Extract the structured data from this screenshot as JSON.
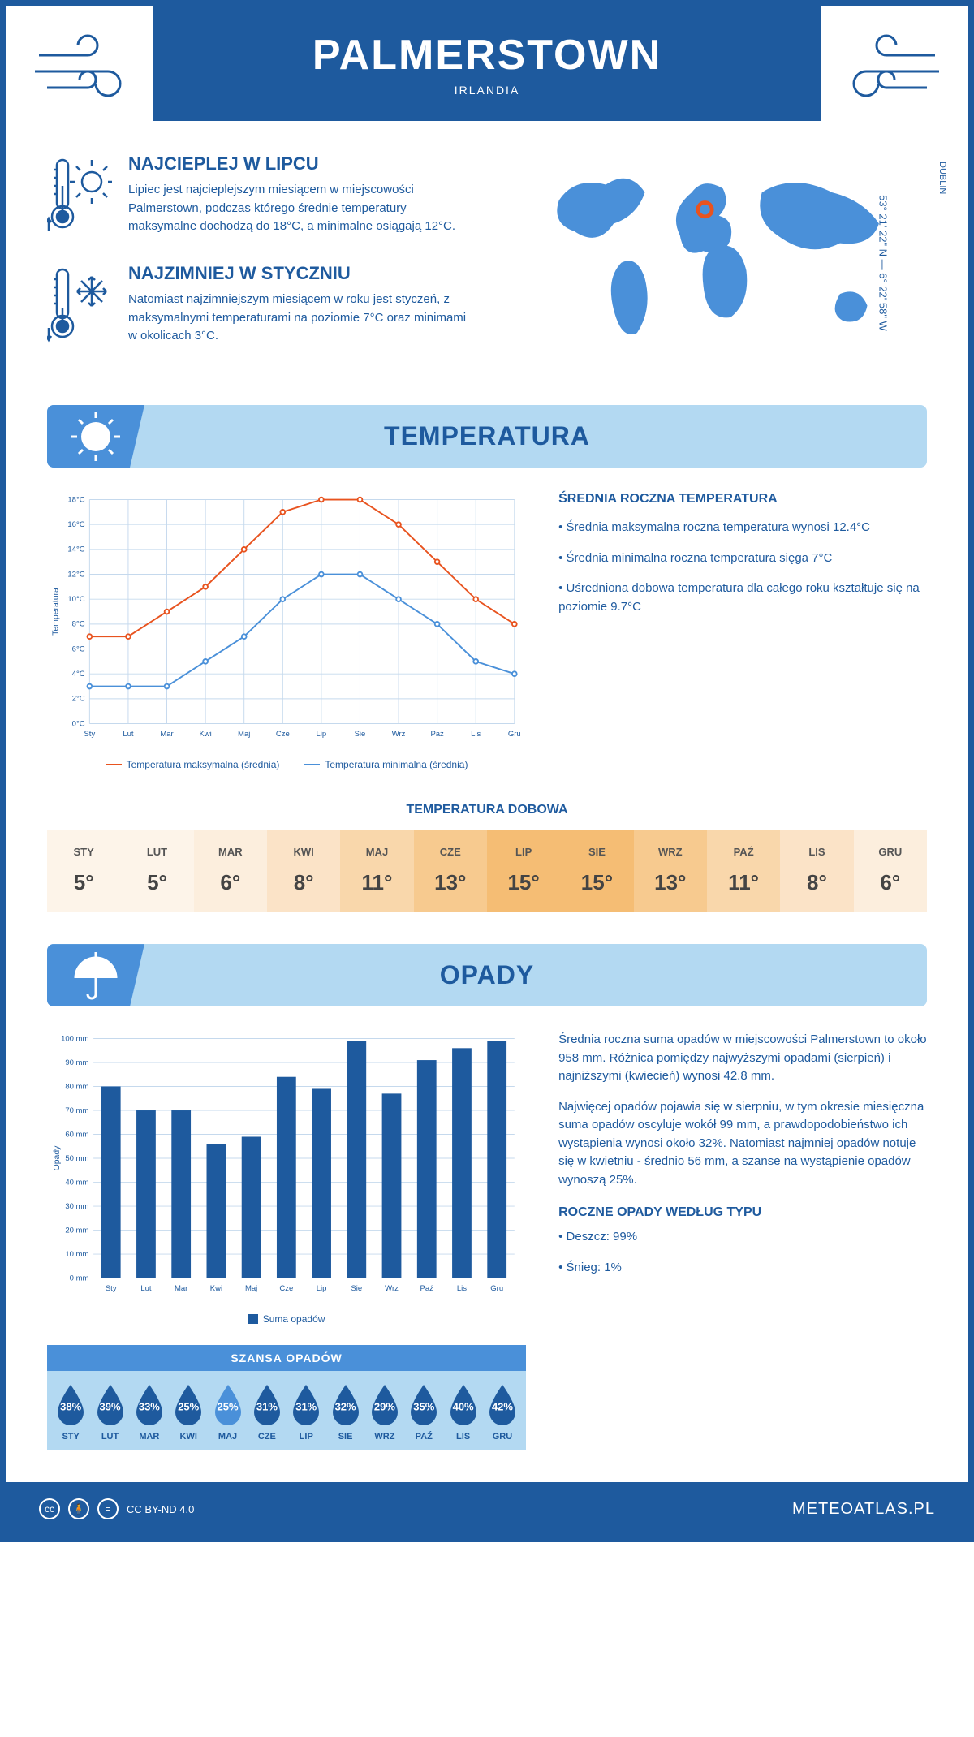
{
  "header": {
    "title": "PALMERSTOWN",
    "country": "IRLANDIA"
  },
  "location": {
    "city_label": "DUBLIN",
    "coords": "53° 21' 22\" N — 6° 22' 58\" W",
    "marker_color": "#e8531f",
    "map_fill": "#4a90d9"
  },
  "facts": {
    "warmest": {
      "title": "NAJCIEPLEJ W LIPCU",
      "text": "Lipiec jest najcieplejszym miesiącem w miejscowości Palmerstown, podczas którego średnie temperatury maksymalne dochodzą do 18°C, a minimalne osiągają 12°C."
    },
    "coldest": {
      "title": "NAJZIMNIEJ W STYCZNIU",
      "text": "Natomiast najzimniejszym miesiącem w roku jest styczeń, z maksymalnymi temperaturami na poziomie 7°C oraz minimami w okolicach 3°C."
    }
  },
  "temperature_section": {
    "heading": "TEMPERATURA",
    "chart": {
      "type": "line",
      "months": [
        "Sty",
        "Lut",
        "Mar",
        "Kwi",
        "Maj",
        "Cze",
        "Lip",
        "Sie",
        "Wrz",
        "Paź",
        "Lis",
        "Gru"
      ],
      "y_axis_title": "Temperatura",
      "ylim": [
        0,
        18
      ],
      "ytick_step": 2,
      "ytick_suffix": "°C",
      "grid_color": "#c5d9ed",
      "background_color": "#ffffff",
      "series": [
        {
          "name": "Temperatura maksymalna (średnia)",
          "color": "#e8531f",
          "values": [
            7,
            7,
            9,
            11,
            14,
            17,
            18,
            18,
            16,
            13,
            10,
            8
          ]
        },
        {
          "name": "Temperatura minimalna (średnia)",
          "color": "#4a90d9",
          "values": [
            3,
            3,
            3,
            5,
            7,
            10,
            12,
            12,
            10,
            8,
            5,
            4
          ]
        }
      ],
      "line_width": 2,
      "marker_radius": 3,
      "label_fontsize": 10
    },
    "summary": {
      "heading": "ŚREDNIA ROCZNA TEMPERATURA",
      "bullets": [
        "Średnia maksymalna roczna temperatura wynosi 12.4°C",
        "Średnia minimalna roczna temperatura sięga 7°C",
        "Uśredniona dobowa temperatura dla całego roku kształtuje się na poziomie 9.7°C"
      ]
    },
    "daily": {
      "heading": "TEMPERATURA DOBOWA",
      "months": [
        "STY",
        "LUT",
        "MAR",
        "KWI",
        "MAJ",
        "CZE",
        "LIP",
        "SIE",
        "WRZ",
        "PAŹ",
        "LIS",
        "GRU"
      ],
      "values": [
        "5°",
        "5°",
        "6°",
        "8°",
        "11°",
        "13°",
        "15°",
        "15°",
        "13°",
        "11°",
        "8°",
        "6°"
      ],
      "cell_colors": [
        "#fdf4e9",
        "#fdf4e9",
        "#fceedd",
        "#fbe3c7",
        "#f9d7ab",
        "#f7ca8f",
        "#f5bd74",
        "#f5bd74",
        "#f7ca8f",
        "#f9d7ab",
        "#fbe3c7",
        "#fceedd"
      ]
    }
  },
  "rain_section": {
    "heading": "OPADY",
    "chart": {
      "type": "bar",
      "months": [
        "Sty",
        "Lut",
        "Mar",
        "Kwi",
        "Maj",
        "Cze",
        "Lip",
        "Sie",
        "Wrz",
        "Paź",
        "Lis",
        "Gru"
      ],
      "y_axis_title": "Opady",
      "ylim": [
        0,
        100
      ],
      "ytick_step": 10,
      "ytick_suffix": " mm",
      "bar_color": "#1e5a9e",
      "grid_color": "#c5d9ed",
      "bar_width": 0.55,
      "values": [
        80,
        70,
        70,
        56,
        59,
        84,
        79,
        99,
        77,
        91,
        96,
        99
      ],
      "legend": "Suma opadów",
      "label_fontsize": 10
    },
    "summary": {
      "p1": "Średnia roczna suma opadów w miejscowości Palmerstown to około 958 mm. Różnica pomiędzy najwyższymi opadami (sierpień) i najniższymi (kwiecień) wynosi 42.8 mm.",
      "p2": "Najwięcej opadów pojawia się w sierpniu, w tym okresie miesięczna suma opadów oscyluje wokół 99 mm, a prawdopodobieństwo ich wystąpienia wynosi około 32%. Natomiast najmniej opadów notuje się w kwietniu - średnio 56 mm, a szanse na wystąpienie opadów wynoszą 25%."
    },
    "chance": {
      "heading": "SZANSA OPADÓW",
      "months": [
        "STY",
        "LUT",
        "MAR",
        "KWI",
        "MAJ",
        "CZE",
        "LIP",
        "SIE",
        "WRZ",
        "PAŹ",
        "LIS",
        "GRU"
      ],
      "values": [
        "38%",
        "39%",
        "33%",
        "25%",
        "25%",
        "31%",
        "31%",
        "32%",
        "29%",
        "35%",
        "40%",
        "42%"
      ],
      "drop_color": "#1e5a9e",
      "drop_color_light": "#4a90d9",
      "light_index": 4
    },
    "by_type": {
      "heading": "ROCZNE OPADY WEDŁUG TYPU",
      "bullets": [
        "Deszcz: 99%",
        "Śnieg: 1%"
      ]
    }
  },
  "footer": {
    "license": "CC BY-ND 4.0",
    "site": "METEOATLAS.PL"
  },
  "colors": {
    "primary": "#1e5a9e",
    "light_blue": "#b3d9f2",
    "mid_blue": "#4a90d9",
    "orange": "#e8531f"
  }
}
